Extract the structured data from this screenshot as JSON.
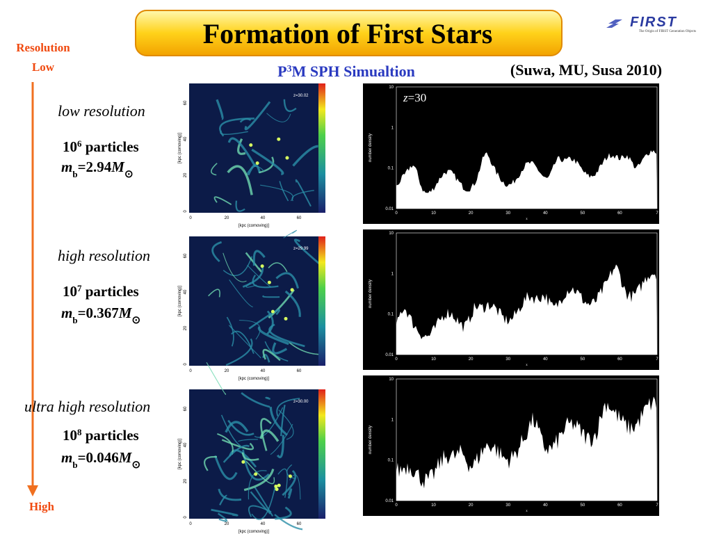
{
  "header": {
    "title": "Formation of First Stars",
    "logo": "FIRST",
    "logo_tagline": "The Origin of FIRST Generation Objects"
  },
  "subtitle": {
    "prefix": "P",
    "sup": "3",
    "suffix": "M SPH Simualtion"
  },
  "citation": "(Suwa, MU, Susa 2010)",
  "resolution_axis": {
    "top_line1": "Resolution",
    "top_line2": "Low",
    "bottom": "High"
  },
  "panels": [
    {
      "label": "low resolution",
      "count_base": "10",
      "count_exp": "6",
      "count_word": " particles",
      "mass_symbol": "m",
      "mass_sub": "b",
      "mass_value": "=2.94",
      "mass_unit": "M",
      "mass_unit_sub": "⊙",
      "map_redshift": "z=30.02",
      "plot_note_var": "z",
      "plot_note_value": "=30"
    },
    {
      "label": "high resolution",
      "count_base": "10",
      "count_exp": "7",
      "count_word": " particles",
      "mass_symbol": "m",
      "mass_sub": "b",
      "mass_value": "=0.367",
      "mass_unit": "M",
      "mass_unit_sub": "⊙",
      "map_redshift": "z=29.99"
    },
    {
      "label": "ultra high resolution",
      "count_base": "10",
      "count_exp": "8",
      "count_word": " particles",
      "mass_symbol": "m",
      "mass_sub": "b",
      "mass_value": "=0.046",
      "mass_unit": "M",
      "mass_unit_sub": "⊙",
      "map_redshift": "z=30.00"
    }
  ],
  "map_axes": {
    "xlabel": "[kpc (comoving)]",
    "ylabel": "[kpc (comoving)]",
    "ticks": [
      "0",
      "20",
      "40",
      "60"
    ]
  },
  "plot_axes": {
    "ylabel": "number density",
    "xlabel": "x",
    "yticks": [
      "10",
      "1",
      "0.1",
      "0.01"
    ],
    "xticks": [
      "0",
      "10",
      "20",
      "30",
      "40",
      "50",
      "60",
      "7"
    ]
  }
}
